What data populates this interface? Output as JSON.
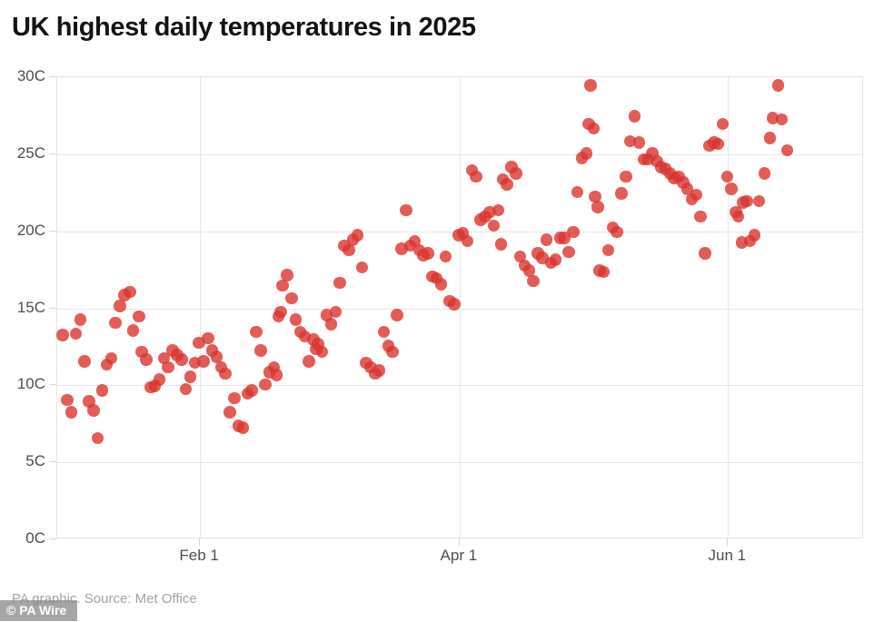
{
  "title": "UK highest daily temperatures in 2025",
  "source_note": "PA graphic. Source: Met Office",
  "watermark": "© PA Wire",
  "colors": {
    "point": "rgba(219,52,46,0.8)",
    "grid": "#e6e6e6",
    "tick": "#d6d6d6",
    "axis_text": "#4d4d4d",
    "title_text": "#141414",
    "source_text": "#a3a3a3",
    "watermark_bg": "rgba(132,132,132,0.72)",
    "watermark_text": "#ffffff"
  },
  "chart_data": {
    "type": "scatter",
    "title": "UK highest daily temperatures in 2025",
    "xlabel": "",
    "ylabel": "",
    "x_unit": "days since 1 Jan 2025",
    "y_unit": "degrees C",
    "ylim": [
      0,
      30
    ],
    "y_tick_step": 5,
    "y_tick_labels": [
      "0C",
      "5C",
      "10C",
      "15C",
      "20C",
      "25C",
      "30C"
    ],
    "x_tick_days": [
      31,
      90,
      151
    ],
    "x_tick_labels": [
      "Feb 1",
      "Apr 1",
      "Jun 1"
    ],
    "grid": true,
    "legend": "none",
    "points": [
      [
        0,
        13.2
      ],
      [
        1,
        9.0
      ],
      [
        2,
        8.2
      ],
      [
        3,
        13.3
      ],
      [
        4,
        14.2
      ],
      [
        5,
        11.5
      ],
      [
        6,
        8.9
      ],
      [
        7,
        8.3
      ],
      [
        8,
        6.5
      ],
      [
        9,
        9.6
      ],
      [
        10,
        11.3
      ],
      [
        11,
        11.7
      ],
      [
        12,
        14.0
      ],
      [
        13,
        15.1
      ],
      [
        14,
        15.8
      ],
      [
        15.3,
        16.0
      ],
      [
        16,
        13.5
      ],
      [
        17.3,
        14.4
      ],
      [
        18,
        12.1
      ],
      [
        19,
        11.6
      ],
      [
        20,
        9.8
      ],
      [
        21,
        9.9
      ],
      [
        22,
        10.3
      ],
      [
        23,
        11.7
      ],
      [
        24,
        11.1
      ],
      [
        25,
        12.2
      ],
      [
        26,
        11.9
      ],
      [
        27,
        11.6
      ],
      [
        28,
        9.7
      ],
      [
        29,
        10.5
      ],
      [
        30,
        11.4
      ],
      [
        31,
        12.7
      ],
      [
        32,
        11.5
      ],
      [
        33,
        13.0
      ],
      [
        34,
        12.2
      ],
      [
        35,
        11.8
      ],
      [
        36,
        11.1
      ],
      [
        37,
        10.7
      ],
      [
        38,
        8.2
      ],
      [
        39,
        9.1
      ],
      [
        40,
        7.3
      ],
      [
        41,
        7.2
      ],
      [
        42,
        9.4
      ],
      [
        43,
        9.6
      ],
      [
        44,
        13.4
      ],
      [
        45,
        12.2
      ],
      [
        46,
        10.0
      ],
      [
        47,
        10.8
      ],
      [
        48,
        11.1
      ],
      [
        48.6,
        10.6
      ],
      [
        49,
        14.4
      ],
      [
        49.6,
        14.7
      ],
      [
        50,
        16.4
      ],
      [
        51,
        17.1
      ],
      [
        52,
        15.6
      ],
      [
        53,
        14.2
      ],
      [
        54,
        13.4
      ],
      [
        55,
        13.1
      ],
      [
        56,
        11.5
      ],
      [
        57,
        12.9
      ],
      [
        57.6,
        12.3
      ],
      [
        58,
        12.6
      ],
      [
        59,
        12.1
      ],
      [
        60,
        14.5
      ],
      [
        61,
        13.9
      ],
      [
        62,
        14.7
      ],
      [
        63,
        16.6
      ],
      [
        64,
        19.0
      ],
      [
        65,
        18.7
      ],
      [
        66,
        19.4
      ],
      [
        67,
        19.7
      ],
      [
        68,
        17.6
      ],
      [
        69,
        11.4
      ],
      [
        70,
        11.1
      ],
      [
        71,
        10.7
      ],
      [
        72,
        10.9
      ],
      [
        73,
        13.4
      ],
      [
        74,
        12.5
      ],
      [
        75,
        12.1
      ],
      [
        76,
        14.5
      ],
      [
        77,
        18.8
      ],
      [
        78,
        21.3
      ],
      [
        79,
        19.0
      ],
      [
        80,
        19.3
      ],
      [
        81,
        18.7
      ],
      [
        82,
        18.4
      ],
      [
        83,
        18.5
      ],
      [
        84,
        17.0
      ],
      [
        85,
        16.9
      ],
      [
        86,
        16.5
      ],
      [
        87,
        18.3
      ],
      [
        88,
        15.4
      ],
      [
        89,
        15.2
      ],
      [
        90,
        19.7
      ],
      [
        91,
        19.8
      ],
      [
        92,
        19.3
      ],
      [
        93,
        23.9
      ],
      [
        94,
        23.5
      ],
      [
        95,
        20.7
      ],
      [
        96,
        20.9
      ],
      [
        97,
        21.2
      ],
      [
        98,
        20.3
      ],
      [
        99,
        21.3
      ],
      [
        99.6,
        19.1
      ],
      [
        100,
        23.3
      ],
      [
        101,
        23.0
      ],
      [
        102,
        24.1
      ],
      [
        103,
        23.7
      ],
      [
        104,
        18.3
      ],
      [
        105,
        17.7
      ],
      [
        106,
        17.4
      ],
      [
        107,
        16.7
      ],
      [
        108,
        18.5
      ],
      [
        109,
        18.2
      ],
      [
        110,
        19.4
      ],
      [
        111,
        17.9
      ],
      [
        112,
        18.1
      ],
      [
        113,
        19.5
      ],
      [
        114,
        19.5
      ],
      [
        115,
        18.6
      ],
      [
        116,
        19.9
      ],
      [
        117,
        22.5
      ],
      [
        118,
        24.7
      ],
      [
        119,
        25.0
      ],
      [
        119.6,
        26.9
      ],
      [
        120,
        29.4
      ],
      [
        120.7,
        26.6
      ],
      [
        121,
        22.2
      ],
      [
        121.6,
        21.5
      ],
      [
        122,
        17.4
      ],
      [
        123,
        17.3
      ],
      [
        124,
        18.7
      ],
      [
        125,
        20.2
      ],
      [
        126,
        19.9
      ],
      [
        127,
        22.4
      ],
      [
        128,
        23.5
      ],
      [
        129,
        25.8
      ],
      [
        130,
        27.4
      ],
      [
        131,
        25.7
      ],
      [
        132,
        24.6
      ],
      [
        133,
        24.6
      ],
      [
        134,
        25.0
      ],
      [
        135,
        24.5
      ],
      [
        136,
        24.1
      ],
      [
        137,
        24.0
      ],
      [
        138,
        23.7
      ],
      [
        139,
        23.4
      ],
      [
        140,
        23.5
      ],
      [
        141,
        23.1
      ],
      [
        142,
        22.7
      ],
      [
        143,
        22.0
      ],
      [
        144,
        22.3
      ],
      [
        145,
        20.9
      ],
      [
        146,
        18.5
      ],
      [
        147,
        25.5
      ],
      [
        148,
        25.7
      ],
      [
        149,
        25.6
      ],
      [
        150,
        26.9
      ],
      [
        151,
        23.5
      ],
      [
        152,
        22.7
      ],
      [
        153,
        21.2
      ],
      [
        153.5,
        20.9
      ],
      [
        154.3,
        19.2
      ],
      [
        154.7,
        21.8
      ],
      [
        155.5,
        21.9
      ],
      [
        156.2,
        19.3
      ],
      [
        157.2,
        19.7
      ],
      [
        158.3,
        21.9
      ],
      [
        159.5,
        23.7
      ],
      [
        160.7,
        26.0
      ],
      [
        161.4,
        27.3
      ],
      [
        162.6,
        29.4
      ],
      [
        163.4,
        27.2
      ],
      [
        164.7,
        25.2
      ]
    ]
  }
}
